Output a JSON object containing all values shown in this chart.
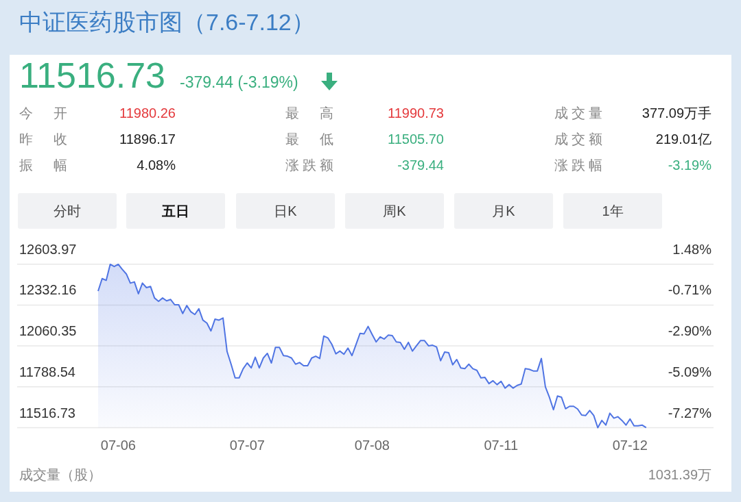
{
  "chart_data": [
    {
      "type": "other",
      "title": "中证医药股市图（7.6-7.12）",
      "annotations": [
        "11516.73",
        "-379.44 (-3.19%)",
        "今开",
        "11980.26",
        "最高",
        "11990.73",
        "成交量",
        "377.09万手",
        "昨收",
        "11896.17",
        "最低",
        "11505.70",
        "成交额",
        "219.01亿",
        "振幅",
        "4.08%",
        "涨跌额",
        "-379.44",
        "涨跌幅",
        "-3.19%",
        "分时",
        "五日",
        "日K",
        "周K",
        "月K",
        "1年"
      ]
    },
    {
      "type": "area",
      "categories": [
        null,
        null,
        null,
        null,
        null,
        "07-06",
        null,
        null,
        null,
        null,
        null,
        null,
        null,
        null,
        null,
        null,
        null,
        null,
        null,
        null,
        null,
        null,
        null,
        null,
        null,
        null,
        null,
        null,
        null,
        null,
        null,
        null,
        null,
        null,
        null,
        null,
        null,
        "07-07",
        null,
        null,
        null,
        null,
        null,
        null,
        null,
        null,
        null,
        null,
        null,
        null,
        null,
        null,
        null,
        null,
        null,
        null,
        null,
        null,
        null,
        null,
        null,
        null,
        null,
        null,
        null,
        null,
        null,
        null,
        "07-08",
        null,
        null,
        null,
        null,
        null,
        null,
        null,
        null,
        null,
        null,
        null,
        null,
        null,
        null,
        null,
        null,
        null,
        null,
        null,
        null,
        null,
        null,
        null,
        null,
        null,
        null,
        null,
        null,
        null,
        null,
        null,
        "07-11",
        null,
        null,
        null,
        null,
        null,
        null,
        null,
        null,
        null,
        null,
        null,
        null,
        null,
        null,
        null,
        null,
        null,
        null,
        null,
        null,
        null,
        null,
        null,
        null,
        null,
        null,
        null,
        null,
        null,
        null,
        null,
        "07-12",
        null,
        null,
        null,
        null
      ],
      "series": [
        {
          "color": "#4f74e3",
          "values": [
            12425,
            12508,
            12496,
            12603,
            12588,
            12603,
            12569,
            12539,
            12478,
            12486,
            12407,
            12478,
            12448,
            12456,
            12379,
            12357,
            12379,
            12360,
            12369,
            12334,
            12334,
            12276,
            12329,
            12288,
            12269,
            12307,
            12232,
            12212,
            12160,
            12238,
            12232,
            12246,
            12023,
            11939,
            11848,
            11848,
            11909,
            11947,
            11914,
            11985,
            11914,
            11980,
            12011,
            11947,
            12050,
            12050,
            11996,
            11992,
            11980,
            11939,
            11950,
            11929,
            11929,
            11980,
            11992,
            11977,
            12126,
            12114,
            12071,
            12008,
            12026,
            12005,
            12046,
            11996,
            12069,
            12144,
            12141,
            12190,
            12137,
            12087,
            12121,
            12106,
            12132,
            12129,
            12087,
            12084,
            12038,
            12084,
            12026,
            12061,
            12096,
            12096,
            12061,
            12065,
            12053,
            11962,
            12020,
            12015,
            11935,
            11970,
            11914,
            11909,
            11939,
            11909,
            11898,
            11848,
            11851,
            11810,
            11829,
            11803,
            11825,
            11780,
            11803,
            11780,
            11798,
            11807,
            11909,
            11905,
            11894,
            11894,
            11977,
            11788,
            11719,
            11636,
            11727,
            11719,
            11643,
            11659,
            11659,
            11641,
            11601,
            11598,
            11631,
            11598,
            11517,
            11565,
            11534,
            11613,
            11580,
            11590,
            11565,
            11534,
            11575,
            11529,
            11529,
            11534,
            11517
          ]
        }
      ],
      "ylim": [
        11516.73,
        12603.97
      ],
      "yticks": [
        12603.97,
        12332.16,
        12060.35,
        11788.54,
        11516.73
      ],
      "y2lim": [
        -7.27,
        1.48
      ],
      "y2ticks": [
        {
          "value": 1.48,
          "label": "1.48%"
        },
        {
          "value": -0.71,
          "label": "-0.71%"
        },
        {
          "value": -2.9,
          "label": "-2.90%"
        },
        {
          "value": -5.09,
          "label": "-5.09%"
        },
        {
          "value": -7.27,
          "label": "-7.27%"
        }
      ],
      "grid": "y",
      "annotations": [
        "成交量（股）",
        "1031.39万"
      ]
    }
  ]
}
